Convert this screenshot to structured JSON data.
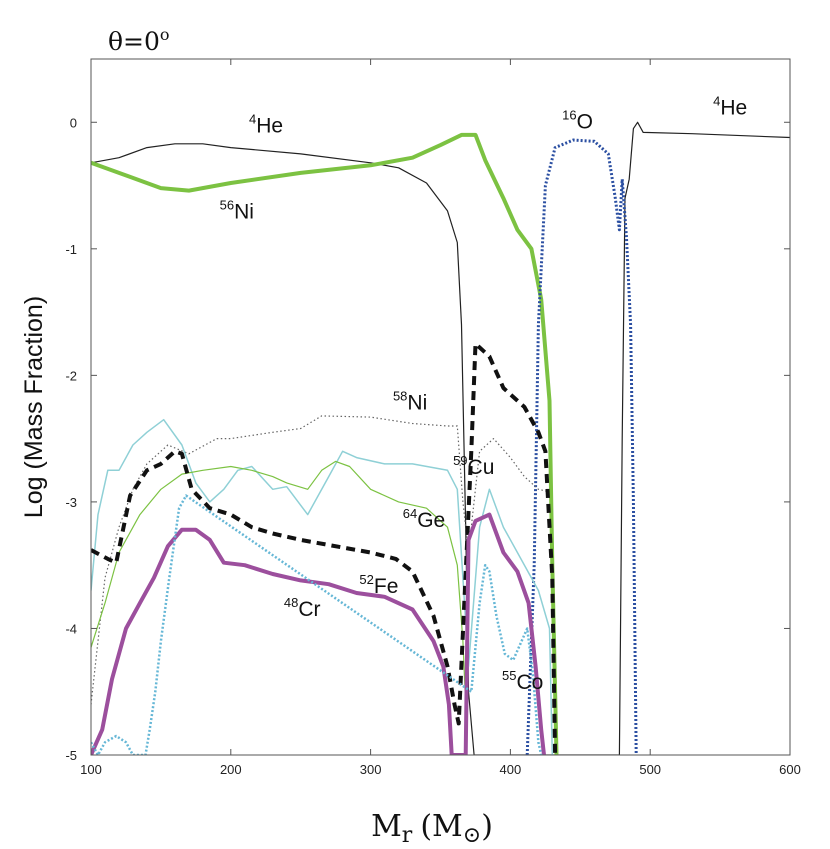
{
  "chart_data": {
    "type": "line",
    "title": "θ=0",
    "title_superscript": "o",
    "xlabel": {
      "main": "M",
      "sub": "r",
      "units": "(M",
      "units_sub": "⊙",
      "close": ")"
    },
    "ylabel": "Log (Mass Fraction)",
    "xlim": [
      100,
      600
    ],
    "ylim": [
      -5,
      0.5
    ],
    "x_ticks": [
      100,
      200,
      300,
      400,
      500,
      600
    ],
    "y_ticks": [
      -5,
      -4,
      -3,
      -2,
      -1,
      0
    ],
    "x_tick_labels": [
      "100",
      "200",
      "300",
      "400",
      "500",
      "600"
    ],
    "y_tick_labels": [
      "-5",
      "-4",
      "-3",
      "-2",
      "-1",
      "0"
    ],
    "series": [
      {
        "name": "4He",
        "color": "#222222",
        "width": 1.2,
        "dash": "",
        "points": [
          [
            100,
            -0.32
          ],
          [
            120,
            -0.28
          ],
          [
            140,
            -0.2
          ],
          [
            160,
            -0.17
          ],
          [
            180,
            -0.17
          ],
          [
            200,
            -0.2
          ],
          [
            250,
            -0.25
          ],
          [
            300,
            -0.32
          ],
          [
            320,
            -0.36
          ],
          [
            340,
            -0.48
          ],
          [
            355,
            -0.7
          ],
          [
            362,
            -0.95
          ],
          [
            365,
            -1.6
          ],
          [
            368,
            -3.2
          ],
          [
            370,
            -4.5
          ],
          [
            374,
            -5
          ],
          [
            478,
            -5
          ],
          [
            480,
            -2.5
          ],
          [
            482,
            -0.6
          ],
          [
            485,
            -0.45
          ],
          [
            488,
            -0.05
          ],
          [
            491,
            0.0
          ],
          [
            495,
            -0.08
          ],
          [
            530,
            -0.09
          ],
          [
            600,
            -0.12
          ]
        ]
      },
      {
        "name": "56Ni",
        "color": "#7cc242",
        "width": 4,
        "dash": "",
        "points": [
          [
            100,
            -0.32
          ],
          [
            120,
            -0.4
          ],
          [
            150,
            -0.52
          ],
          [
            170,
            -0.54
          ],
          [
            200,
            -0.48
          ],
          [
            250,
            -0.4
          ],
          [
            300,
            -0.34
          ],
          [
            330,
            -0.28
          ],
          [
            350,
            -0.18
          ],
          [
            365,
            -0.1
          ],
          [
            375,
            -0.1
          ],
          [
            382,
            -0.3
          ],
          [
            395,
            -0.6
          ],
          [
            405,
            -0.85
          ],
          [
            415,
            -1.0
          ],
          [
            422,
            -1.4
          ],
          [
            428,
            -2.2
          ],
          [
            430,
            -3.5
          ],
          [
            433,
            -5
          ]
        ]
      },
      {
        "name": "16O",
        "color": "#2b4fa2",
        "width": 3,
        "dash": "2,2",
        "points": [
          [
            412,
            -5
          ],
          [
            417,
            -3.5
          ],
          [
            420,
            -1.6
          ],
          [
            425,
            -0.5
          ],
          [
            432,
            -0.2
          ],
          [
            445,
            -0.14
          ],
          [
            460,
            -0.15
          ],
          [
            470,
            -0.25
          ],
          [
            475,
            -0.6
          ],
          [
            478,
            -0.85
          ],
          [
            480,
            -0.45
          ],
          [
            483,
            -0.9
          ],
          [
            486,
            -1.6
          ],
          [
            488,
            -3.0
          ],
          [
            490,
            -5
          ]
        ]
      },
      {
        "name": "58Ni",
        "color": "#666666",
        "width": 1.2,
        "dash": "1.5,2.5",
        "points": [
          [
            100,
            -4.6
          ],
          [
            110,
            -3.6
          ],
          [
            120,
            -3.2
          ],
          [
            130,
            -2.9
          ],
          [
            140,
            -2.7
          ],
          [
            155,
            -2.55
          ],
          [
            170,
            -2.62
          ],
          [
            190,
            -2.5
          ],
          [
            200,
            -2.5
          ],
          [
            230,
            -2.45
          ],
          [
            250,
            -2.42
          ],
          [
            265,
            -2.32
          ],
          [
            300,
            -2.33
          ],
          [
            330,
            -2.38
          ],
          [
            355,
            -2.4
          ],
          [
            362,
            -2.4
          ],
          [
            366,
            -3.0
          ],
          [
            370,
            -3.4
          ],
          [
            378,
            -2.6
          ],
          [
            388,
            -2.5
          ],
          [
            400,
            -2.65
          ],
          [
            410,
            -2.8
          ],
          [
            420,
            -2.9
          ],
          [
            428,
            -2.92
          ]
        ]
      },
      {
        "name": "59Cu",
        "color": "#8fd0d6",
        "width": 1.5,
        "dash": "",
        "points": [
          [
            100,
            -3.7
          ],
          [
            105,
            -3.1
          ],
          [
            112,
            -2.75
          ],
          [
            120,
            -2.75
          ],
          [
            130,
            -2.55
          ],
          [
            140,
            -2.45
          ],
          [
            152,
            -2.35
          ],
          [
            165,
            -2.55
          ],
          [
            175,
            -2.85
          ],
          [
            185,
            -3.0
          ],
          [
            195,
            -2.9
          ],
          [
            205,
            -2.75
          ],
          [
            215,
            -2.72
          ],
          [
            230,
            -2.9
          ],
          [
            240,
            -2.88
          ],
          [
            255,
            -3.1
          ],
          [
            270,
            -2.8
          ],
          [
            280,
            -2.6
          ],
          [
            290,
            -2.65
          ],
          [
            310,
            -2.7
          ],
          [
            330,
            -2.7
          ],
          [
            355,
            -2.75
          ],
          [
            362,
            -2.9
          ],
          [
            366,
            -3.6
          ],
          [
            370,
            -4.3
          ],
          [
            378,
            -3.2
          ],
          [
            385,
            -2.9
          ],
          [
            395,
            -3.2
          ],
          [
            405,
            -3.4
          ],
          [
            420,
            -3.7
          ],
          [
            428,
            -4.0
          ],
          [
            430,
            -5
          ]
        ]
      },
      {
        "name": "64Ge",
        "color": "#7cc242",
        "width": 1.2,
        "dash": "",
        "points": [
          [
            100,
            -4.15
          ],
          [
            110,
            -3.8
          ],
          [
            120,
            -3.4
          ],
          [
            135,
            -3.1
          ],
          [
            150,
            -2.9
          ],
          [
            165,
            -2.78
          ],
          [
            180,
            -2.75
          ],
          [
            200,
            -2.72
          ],
          [
            215,
            -2.75
          ],
          [
            230,
            -2.8
          ],
          [
            240,
            -2.85
          ],
          [
            255,
            -2.9
          ],
          [
            265,
            -2.75
          ],
          [
            275,
            -2.68
          ],
          [
            285,
            -2.72
          ],
          [
            300,
            -2.9
          ],
          [
            320,
            -3.0
          ],
          [
            340,
            -3.05
          ],
          [
            355,
            -3.2
          ],
          [
            362,
            -3.5
          ],
          [
            366,
            -4.1
          ],
          [
            368,
            -4.6
          ]
        ]
      },
      {
        "name": "52Fe",
        "color": "#111111",
        "width": 4,
        "dash": "9,6",
        "points": [
          [
            100,
            -3.38
          ],
          [
            112,
            -3.45
          ],
          [
            118,
            -3.48
          ],
          [
            128,
            -2.95
          ],
          [
            140,
            -2.75
          ],
          [
            150,
            -2.7
          ],
          [
            160,
            -2.6
          ],
          [
            165,
            -2.62
          ],
          [
            172,
            -2.9
          ],
          [
            185,
            -3.05
          ],
          [
            200,
            -3.1
          ],
          [
            215,
            -3.2
          ],
          [
            230,
            -3.25
          ],
          [
            250,
            -3.3
          ],
          [
            280,
            -3.36
          ],
          [
            300,
            -3.4
          ],
          [
            318,
            -3.45
          ],
          [
            330,
            -3.55
          ],
          [
            345,
            -3.9
          ],
          [
            355,
            -4.3
          ],
          [
            360,
            -4.6
          ],
          [
            363,
            -4.75
          ],
          [
            367,
            -3.8
          ],
          [
            372,
            -2.6
          ],
          [
            375,
            -1.75
          ],
          [
            385,
            -1.85
          ],
          [
            395,
            -2.1
          ],
          [
            410,
            -2.25
          ],
          [
            420,
            -2.45
          ],
          [
            425,
            -2.6
          ],
          [
            430,
            -3.6
          ],
          [
            432,
            -5
          ]
        ]
      },
      {
        "name": "48Cr",
        "color": "#9c4f9d",
        "width": 4,
        "dash": "",
        "points": [
          [
            100,
            -5
          ],
          [
            108,
            -4.8
          ],
          [
            115,
            -4.4
          ],
          [
            125,
            -4.0
          ],
          [
            135,
            -3.8
          ],
          [
            145,
            -3.6
          ],
          [
            155,
            -3.35
          ],
          [
            165,
            -3.22
          ],
          [
            175,
            -3.22
          ],
          [
            185,
            -3.3
          ],
          [
            195,
            -3.48
          ],
          [
            210,
            -3.5
          ],
          [
            230,
            -3.57
          ],
          [
            250,
            -3.62
          ],
          [
            270,
            -3.65
          ],
          [
            290,
            -3.72
          ],
          [
            310,
            -3.75
          ],
          [
            330,
            -3.85
          ],
          [
            345,
            -4.1
          ],
          [
            352,
            -4.3
          ],
          [
            356,
            -4.6
          ],
          [
            358,
            -5
          ],
          [
            368,
            -5
          ],
          [
            370,
            -3.3
          ],
          [
            375,
            -3.15
          ],
          [
            385,
            -3.1
          ],
          [
            395,
            -3.4
          ],
          [
            405,
            -3.55
          ],
          [
            413,
            -3.8
          ],
          [
            418,
            -4.3
          ],
          [
            422,
            -4.8
          ],
          [
            424,
            -5
          ]
        ]
      },
      {
        "name": "55Co",
        "color": "#66b7d6",
        "width": 2.5,
        "dash": "2,2",
        "points": [
          [
            100,
            -4.9
          ],
          [
            105,
            -5
          ],
          [
            110,
            -4.9
          ],
          [
            118,
            -4.85
          ],
          [
            125,
            -4.9
          ],
          [
            130,
            -5
          ],
          [
            139,
            -5
          ],
          [
            142,
            -4.8
          ],
          [
            146,
            -4.5
          ],
          [
            150,
            -4.1
          ],
          [
            156,
            -3.6
          ],
          [
            163,
            -3.05
          ],
          [
            168,
            -2.95
          ],
          [
            372,
            -4.5
          ],
          [
            378,
            -3.8
          ],
          [
            382,
            -3.5
          ],
          [
            385,
            -3.55
          ],
          [
            390,
            -3.9
          ],
          [
            396,
            -4.2
          ],
          [
            402,
            -4.25
          ],
          [
            408,
            -4.1
          ],
          [
            412,
            -4.0
          ],
          [
            416,
            -4.35
          ],
          [
            420,
            -4.9
          ],
          [
            422,
            -5
          ]
        ]
      }
    ],
    "annotations": [
      {
        "iso": "4",
        "sym": "He",
        "x": 213,
        "y": -0.08
      },
      {
        "iso": "56",
        "sym": "Ni",
        "x": 192,
        "y": -0.76
      },
      {
        "iso": "16",
        "sym": "O",
        "x": 437,
        "y": -0.05
      },
      {
        "iso": "4",
        "sym": "He",
        "x": 545,
        "y": 0.06
      },
      {
        "iso": "58",
        "sym": "Ni",
        "x": 316,
        "y": -2.27
      },
      {
        "iso": "59",
        "sym": "Cu",
        "x": 359,
        "y": -2.78
      },
      {
        "iso": "64",
        "sym": "Ge",
        "x": 323,
        "y": -3.2
      },
      {
        "iso": "52",
        "sym": "Fe",
        "x": 292,
        "y": -3.72
      },
      {
        "iso": "48",
        "sym": "Cr",
        "x": 238,
        "y": -3.9
      },
      {
        "iso": "55",
        "sym": "Co",
        "x": 394,
        "y": -4.48
      }
    ]
  }
}
